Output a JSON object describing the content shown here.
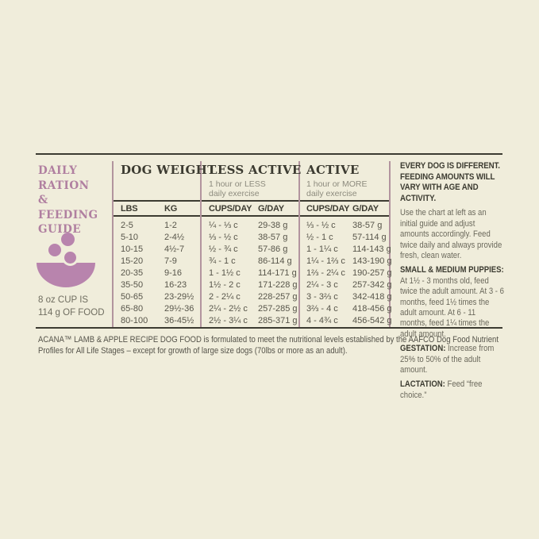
{
  "colors": {
    "background": "#f0eddb",
    "ink": "#3c3b31",
    "mauve_text": "#b07fa0",
    "mauve_icon": "#b884ad",
    "divider": "#b2949e",
    "muted_gray": "#8d8b7e",
    "body_gray": "#6b695c"
  },
  "guide": {
    "title_line1": "DAILY RATION",
    "title_line2": "& FEEDING",
    "title_line3": "GUIDE",
    "icon": "kibble-bowl-icon",
    "cup_note_line1": "8 oz CUP IS",
    "cup_note_line2": "114 g OF FOOD",
    "columns": {
      "dog_weight": {
        "title": "DOG WEIGHT",
        "sub1": "LBS",
        "sub2": "KG"
      },
      "less_active": {
        "title": "LESS ACTIVE",
        "subtitle1": "1 hour or LESS",
        "subtitle2": "daily exercise",
        "sub1": "CUPS/DAY",
        "sub2": "G/DAY"
      },
      "active": {
        "title": "ACTIVE",
        "subtitle1": "1 hour or MORE",
        "subtitle2": "daily exercise",
        "sub1": "CUPS/DAY",
        "sub2": "G/DAY"
      }
    },
    "rows": [
      {
        "lbs": "2-5",
        "kg": "1-2",
        "la_cups": "¼ - ⅓ c",
        "la_g": "29-38 g",
        "a_cups": "⅓ - ½ c",
        "a_g": "38-57 g"
      },
      {
        "lbs": "5-10",
        "kg": "2-4½",
        "la_cups": "⅓ - ½ c",
        "la_g": "38-57 g",
        "a_cups": "½ - 1 c",
        "a_g": "57-114 g"
      },
      {
        "lbs": "10-15",
        "kg": "4½-7",
        "la_cups": "½ - ¾ c",
        "la_g": "57-86 g",
        "a_cups": "1 - 1¼ c",
        "a_g": "114-143 g"
      },
      {
        "lbs": "15-20",
        "kg": "7-9",
        "la_cups": "¾ - 1 c",
        "la_g": "86-114 g",
        "a_cups": "1¼ - 1⅔ c",
        "a_g": "143-190 g"
      },
      {
        "lbs": "20-35",
        "kg": "9-16",
        "la_cups": "1 - 1½ c",
        "la_g": "114-171 g",
        "a_cups": "1⅔ - 2¼ c",
        "a_g": "190-257 g"
      },
      {
        "lbs": "35-50",
        "kg": "16-23",
        "la_cups": "1½ - 2 c",
        "la_g": "171-228 g",
        "a_cups": "2¼ - 3 c",
        "a_g": "257-342 g"
      },
      {
        "lbs": "50-65",
        "kg": "23-29½",
        "la_cups": "2 - 2¼ c",
        "la_g": "228-257 g",
        "a_cups": "3 - 3⅔ c",
        "a_g": "342-418 g"
      },
      {
        "lbs": "65-80",
        "kg": "29½-36",
        "la_cups": "2¼ - 2½ c",
        "la_g": "257-285 g",
        "a_cups": "3⅔ - 4 c",
        "a_g": "418-456 g"
      },
      {
        "lbs": "80-100",
        "kg": "36-45½",
        "la_cups": "2½ - 3¼ c",
        "la_g": "285-371 g",
        "a_cups": "4 - 4¾ c",
        "a_g": "456-542 g"
      }
    ],
    "notes": {
      "heading": "EVERY DOG IS DIFFERENT. FEEDING AMOUNTS WILL VARY WITH AGE AND ACTIVITY.",
      "intro": "Use the chart at left as an initial guide and adjust amounts accordingly. Feed twice daily and always provide fresh, clean water.",
      "puppies_label": "SMALL & MEDIUM PUPPIES:",
      "puppies_text": "At 1½ - 3 months old, feed twice the adult amount. At 3 - 6 months, feed 1½ times the adult amount. At 6 - 11 months, feed 1¼ times the adult amount.",
      "gestation_label": "GESTATION:",
      "gestation_text": " Increase from 25% to 50% of the adult amount.",
      "lactation_label": "LACTATION:",
      "lactation_text": " Feed “free choice.”"
    }
  },
  "footer": {
    "text": "ACANA™ LAMB & APPLE RECIPE DOG FOOD is formulated to meet the nutritional levels established by the AAFCO Dog Food Nutrient Profiles for All Life Stages – except for growth of large size dogs (70lbs or more as an adult)."
  }
}
